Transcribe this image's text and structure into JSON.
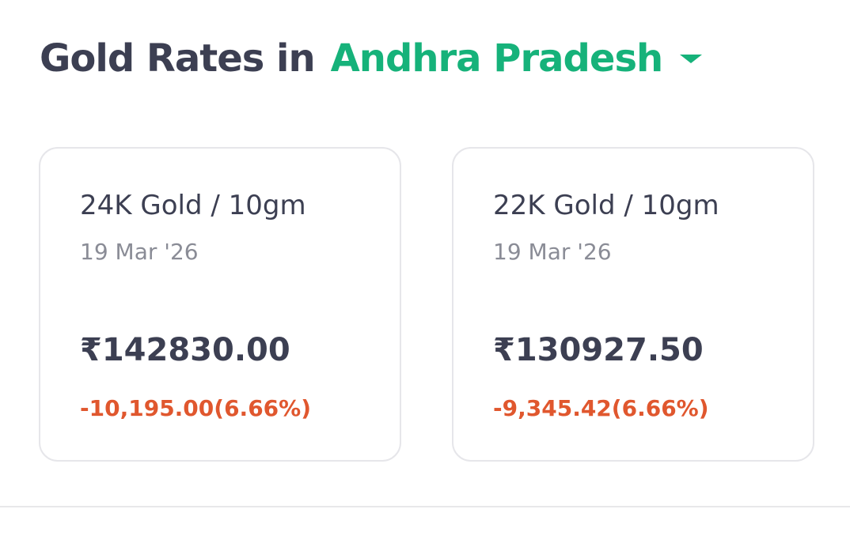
{
  "header": {
    "title": "Gold Rates in",
    "location": "Andhra Pradesh"
  },
  "cards": [
    {
      "label": "24K Gold / 10gm",
      "date": "19 Mar '26",
      "price": "₹142830.00",
      "change": "-10,195.00(6.66%)"
    },
    {
      "label": "22K Gold / 10gm",
      "date": "19 Mar '26",
      "price": "₹130927.50",
      "change": "-9,345.42(6.66%)"
    }
  ]
}
